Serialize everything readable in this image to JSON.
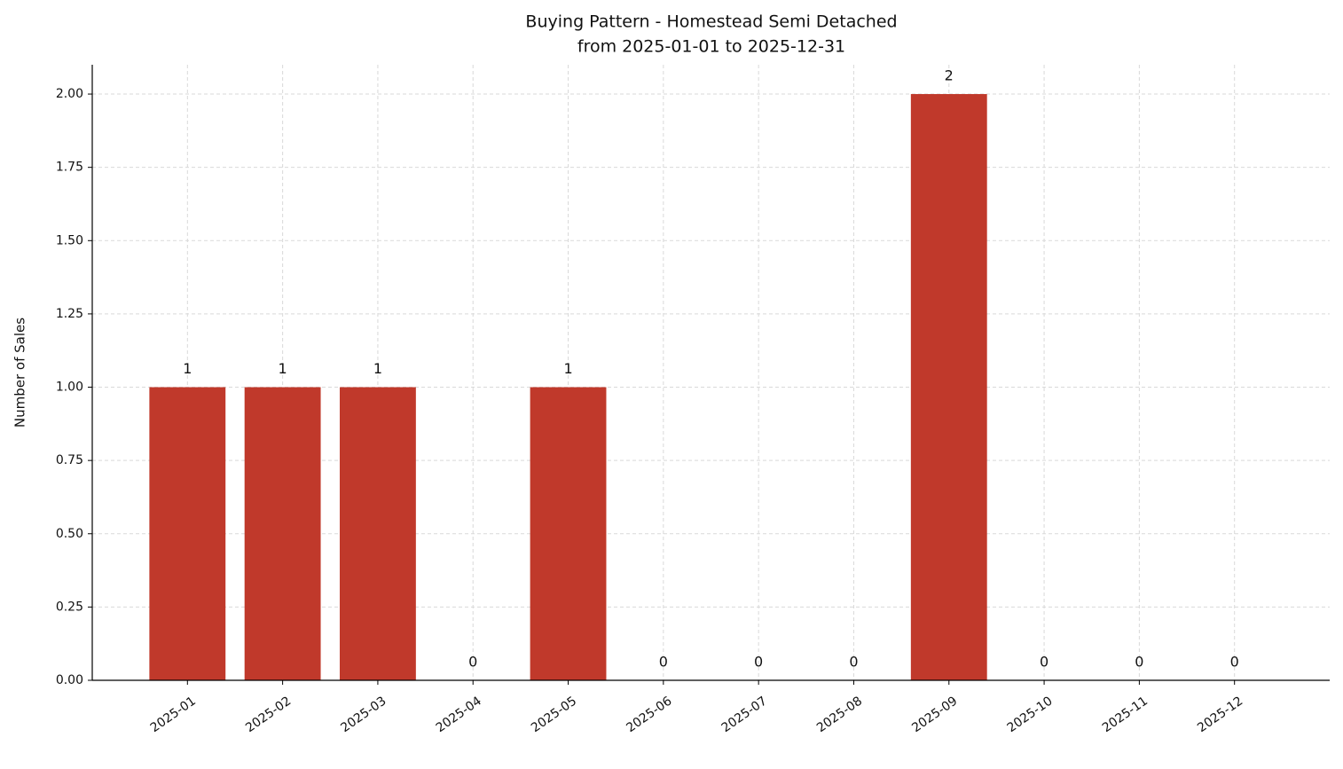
{
  "chart_data": {
    "type": "bar",
    "title": "Buying Pattern - Homestead Semi Detached",
    "subtitle": "from 2025-01-01 to 2025-12-31",
    "y_label": "Number of Sales",
    "categories": [
      "2025-01",
      "2025-02",
      "2025-03",
      "2025-04",
      "2025-05",
      "2025-06",
      "2025-07",
      "2025-08",
      "2025-09",
      "2025-10",
      "2025-11",
      "2025-12"
    ],
    "values": [
      1,
      1,
      1,
      0,
      1,
      0,
      0,
      0,
      2,
      0,
      0,
      0
    ],
    "color": "#c0392b",
    "ylim": [
      0,
      2.1
    ],
    "yticks": [
      {
        "value": 0,
        "label": "0.00"
      },
      {
        "value": 0.25,
        "label": "0.25"
      },
      {
        "value": 0.5,
        "label": "0.50"
      },
      {
        "value": 0.75,
        "label": "0.75"
      },
      {
        "value": 1,
        "label": "1.00"
      },
      {
        "value": 1.25,
        "label": "1.25"
      },
      {
        "value": 1.5,
        "label": "1.50"
      },
      {
        "value": 1.75,
        "label": "1.75"
      },
      {
        "value": 2,
        "label": "2.00"
      }
    ],
    "grid": true
  }
}
